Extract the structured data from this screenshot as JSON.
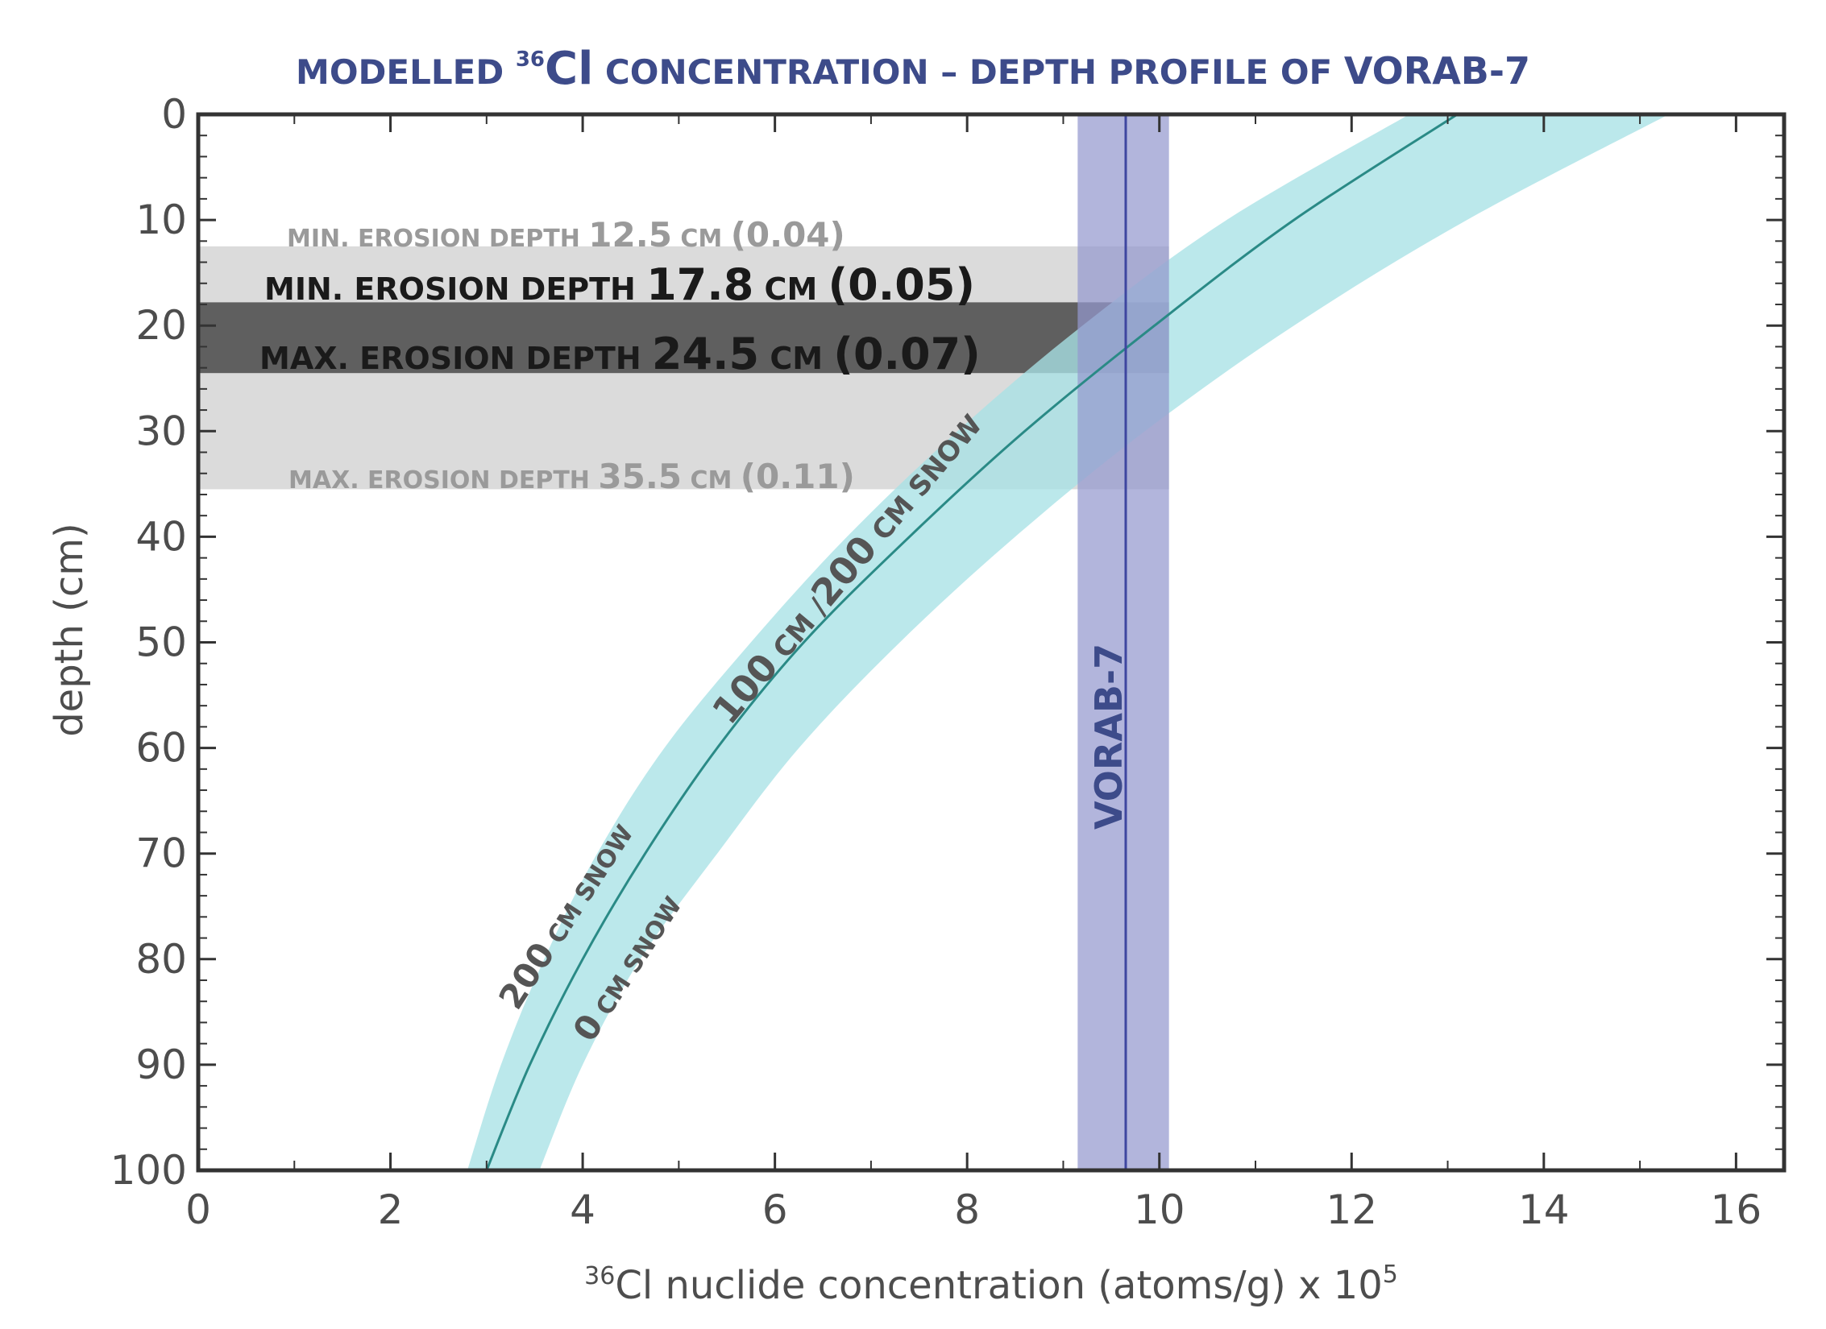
{
  "chart_data": {
    "type": "line",
    "title_parts": {
      "pre": "MODELLED ",
      "superscript": "36",
      "element": "Cl",
      "post": " CONCENTRATION – DEPTH PROFILE  OF ",
      "sample": "VORAB-7"
    },
    "xlabel": {
      "superscript": "36",
      "text": "Cl nuclide concentration  (atoms/g) x 10",
      "exponent": "5"
    },
    "ylabel": "depth (cm)",
    "xlim": [
      0,
      16.5
    ],
    "ylim": [
      0,
      100
    ],
    "y_inverted": true,
    "x_ticks": [
      0,
      2,
      4,
      6,
      8,
      10,
      12,
      14,
      16
    ],
    "y_ticks": [
      0,
      10,
      20,
      30,
      40,
      50,
      60,
      70,
      80,
      90,
      100
    ],
    "series": [
      {
        "name": "100 cm / 200 cm snow (modelled profile)",
        "style": "line",
        "color": "#2a8a86",
        "x": [
          13.1,
          11.4,
          9.95,
          8.6,
          7.4,
          6.3,
          5.4,
          4.65,
          4.0,
          3.45,
          3.0
        ],
        "y": [
          0,
          10,
          20,
          30,
          40,
          50,
          60,
          70,
          80,
          90,
          100
        ]
      },
      {
        "name": "200 cm snow (band edge)",
        "style": "band-edge",
        "x": [
          12.6,
          10.7,
          9.2,
          7.9,
          6.75,
          5.75,
          4.85,
          4.15,
          3.6,
          3.15,
          2.8
        ],
        "y": [
          0,
          10,
          20,
          30,
          40,
          50,
          60,
          70,
          80,
          90,
          100
        ]
      },
      {
        "name": "0 cm snow (band edge)",
        "style": "band-edge",
        "x": [
          15.3,
          13.2,
          11.4,
          9.85,
          8.5,
          7.3,
          6.25,
          5.4,
          4.6,
          4.0,
          3.55
        ],
        "y": [
          0,
          10,
          20,
          30,
          40,
          50,
          60,
          70,
          80,
          90,
          100
        ]
      }
    ],
    "band_color": "#a8e2e6",
    "sample_measurement": {
      "name": "VORAB-7",
      "value": 9.65,
      "min": 9.15,
      "max": 10.1,
      "line_color": "#3e46a0",
      "band_color": "#9499cf"
    },
    "depth_ranges": [
      {
        "label": "outer",
        "y_from": 12.5,
        "y_to": 35.5,
        "color": "#d9d9d9"
      },
      {
        "label": "inner",
        "y_from": 17.8,
        "y_to": 24.5,
        "color": "#585858"
      }
    ],
    "annotations": {
      "min_outer": {
        "pre": "MIN. EROSION DEPTH ",
        "value": "12.5",
        "unit": " CM ",
        "ratio": "(0.04)"
      },
      "min_inner": {
        "pre": "MIN. EROSION DEPTH ",
        "value": "17.8",
        "unit": " CM ",
        "ratio": "(0.05)"
      },
      "max_inner": {
        "pre": "MAX. EROSION DEPTH ",
        "value": "24.5",
        "unit": " CM ",
        "ratio": "(0.07)"
      },
      "max_outer": {
        "pre": "MAX. EROSION DEPTH ",
        "value": "35.5",
        "unit": " CM ",
        "ratio": "(0.11)"
      },
      "curve_label": {
        "a": "100",
        "b": " CM /",
        "c": "200",
        "d": " CM SNOW"
      },
      "snow200_label": {
        "num": "200",
        "text": " CM SNOW"
      },
      "snow0_label": {
        "num": "0",
        "text": " CM SNOW"
      },
      "sample_label": "VORAB-7"
    },
    "legend": "none",
    "grid": false
  },
  "colors": {
    "title": "#3d4b8a",
    "axis_text": "#4d4d4d",
    "annot_grey": "#9a9a9a",
    "annot_dark": "#1a1a1a",
    "curve_label": "#555555"
  }
}
